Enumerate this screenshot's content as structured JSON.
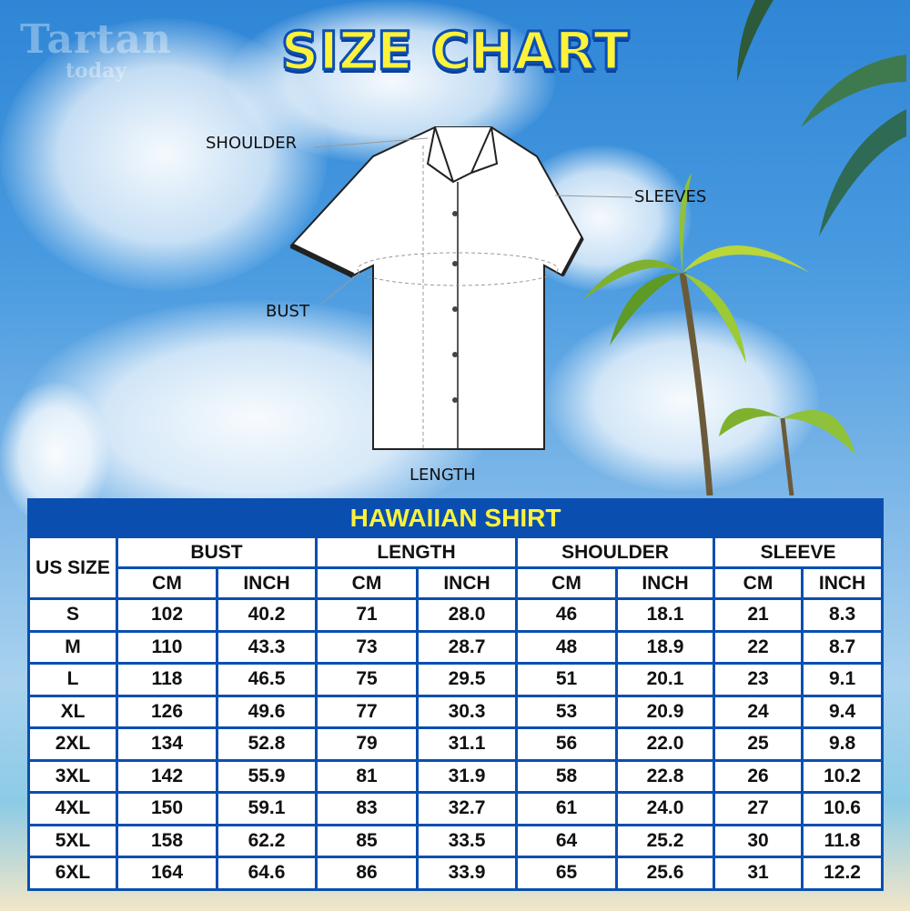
{
  "logo": {
    "line1": "Tartan",
    "line2": "today"
  },
  "title": "SIZE CHART",
  "diagram": {
    "shoulder": "SHOULDER",
    "sleeves": "SLEEVES",
    "bust": "BUST",
    "length": "LENGTH"
  },
  "table": {
    "caption": "HAWAIIAN SHIRT",
    "size_header": "US SIZE",
    "groups": [
      "BUST",
      "LENGTH",
      "SHOULDER",
      "SLEEVE"
    ],
    "units": [
      "CM",
      "INCH",
      "CM",
      "INCH",
      "CM",
      "INCH",
      "CM",
      "INCH"
    ],
    "rows": [
      [
        "S",
        "102",
        "40.2",
        "71",
        "28.0",
        "46",
        "18.1",
        "21",
        "8.3"
      ],
      [
        "M",
        "110",
        "43.3",
        "73",
        "28.7",
        "48",
        "18.9",
        "22",
        "8.7"
      ],
      [
        "L",
        "118",
        "46.5",
        "75",
        "29.5",
        "51",
        "20.1",
        "23",
        "9.1"
      ],
      [
        "XL",
        "126",
        "49.6",
        "77",
        "30.3",
        "53",
        "20.9",
        "24",
        "9.4"
      ],
      [
        "2XL",
        "134",
        "52.8",
        "79",
        "31.1",
        "56",
        "22.0",
        "25",
        "9.8"
      ],
      [
        "3XL",
        "142",
        "55.9",
        "81",
        "31.9",
        "58",
        "22.8",
        "26",
        "10.2"
      ],
      [
        "4XL",
        "150",
        "59.1",
        "83",
        "32.7",
        "61",
        "24.0",
        "27",
        "10.6"
      ],
      [
        "5XL",
        "158",
        "62.2",
        "85",
        "33.5",
        "64",
        "25.2",
        "30",
        "11.8"
      ],
      [
        "6XL",
        "164",
        "64.6",
        "86",
        "33.9",
        "65",
        "25.6",
        "31",
        "12.2"
      ]
    ]
  },
  "colors": {
    "table_border": "#0a4fb0",
    "title_yellow": "#fff23a"
  }
}
